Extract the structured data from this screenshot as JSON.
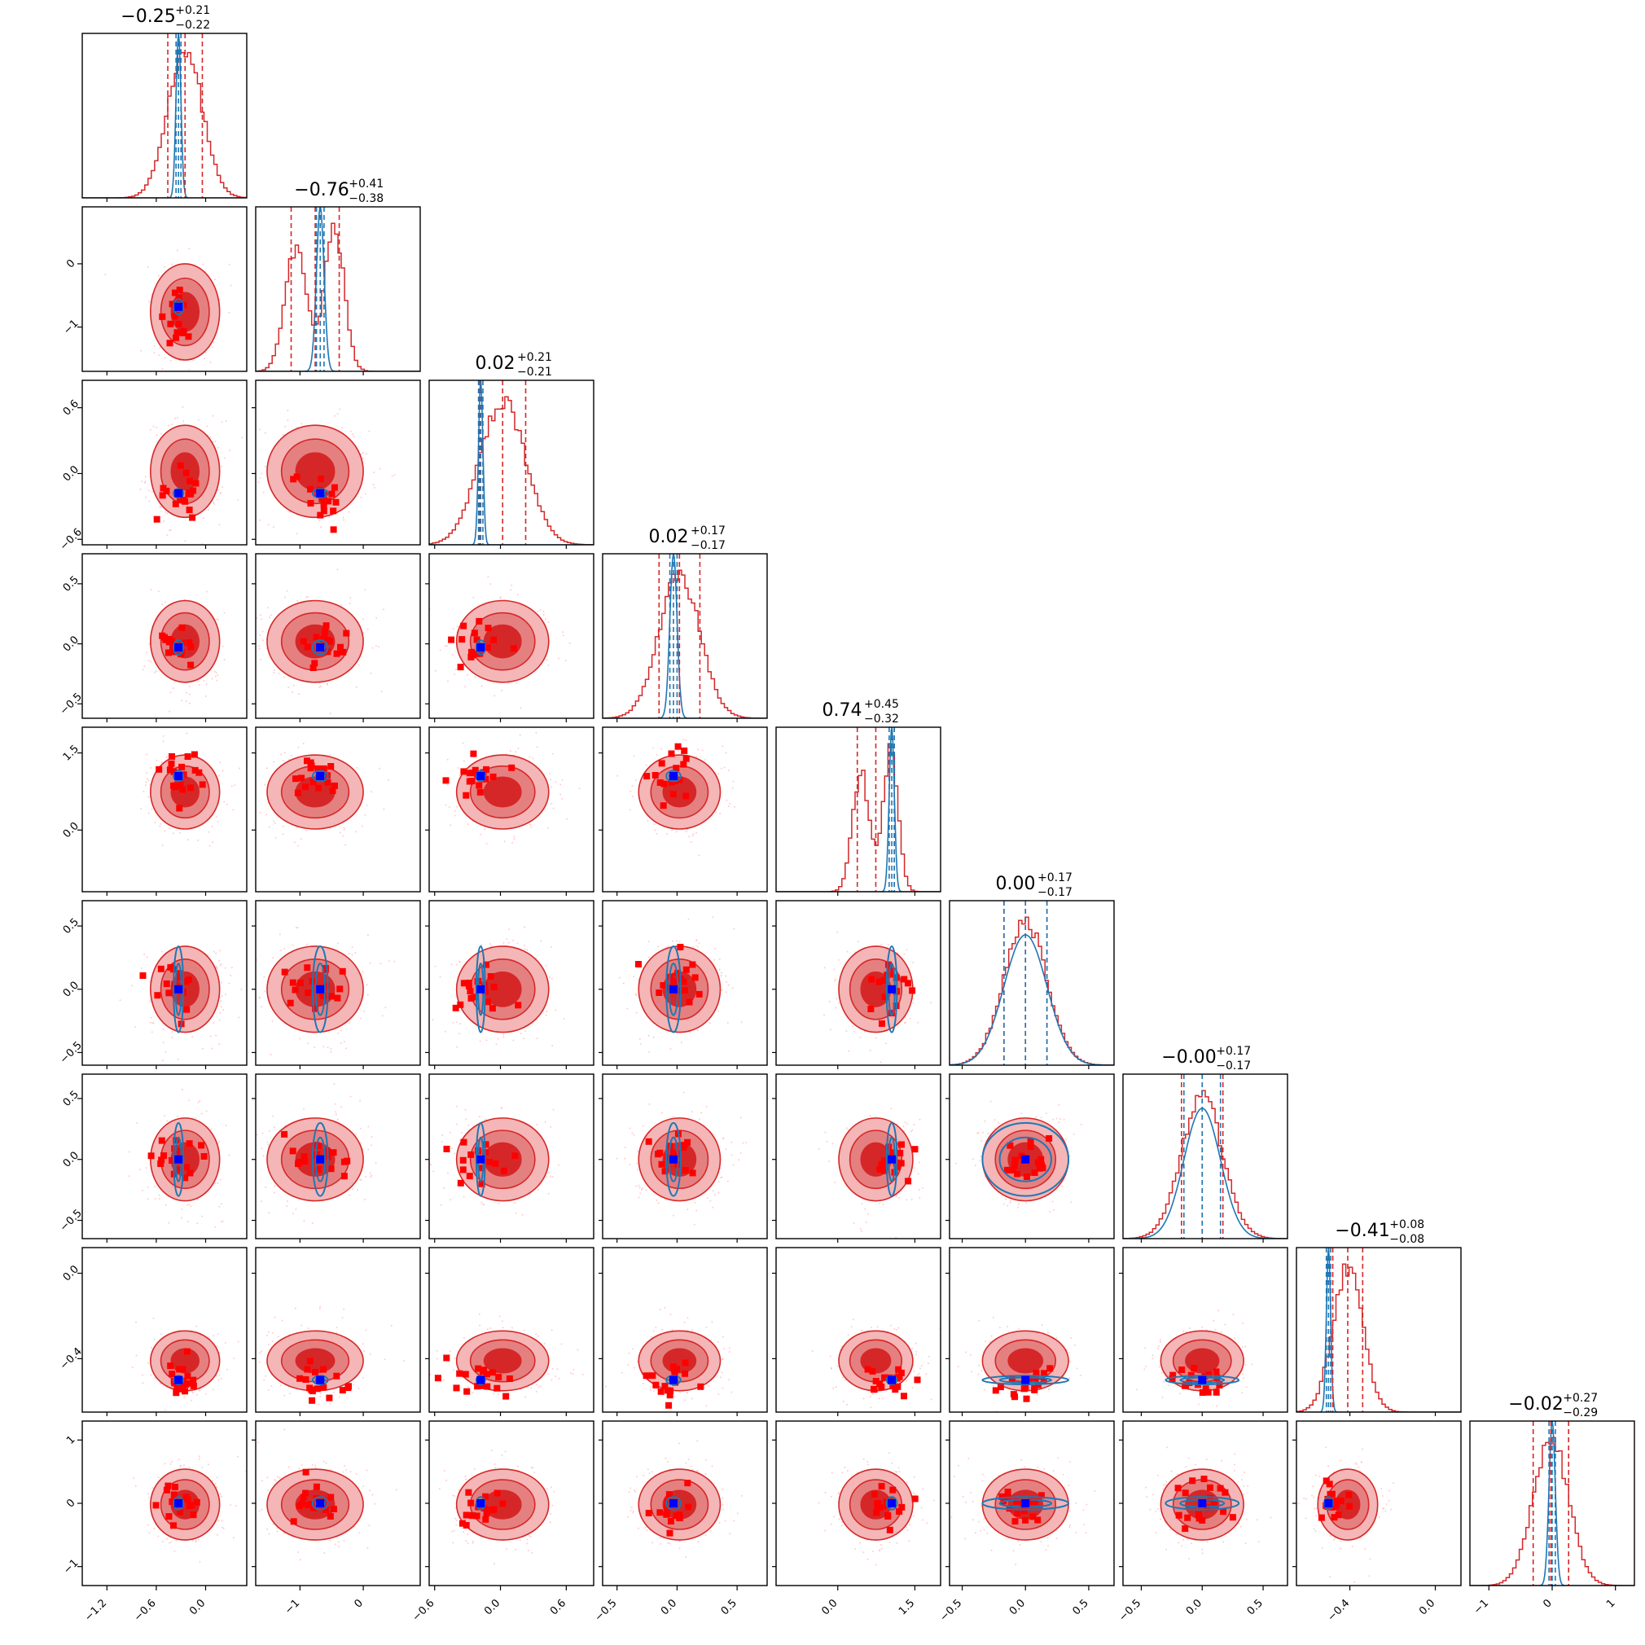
{
  "chart_data": {
    "type": "corner",
    "n_params": 9,
    "colors": {
      "reference": "#d62728",
      "fit": "#1f77b4",
      "outliers": "#ff0000",
      "truth_marker": "#0000ff"
    },
    "parameters": [
      {
        "index": 0,
        "range": [
          -1.5,
          0.5
        ],
        "ref_median": -0.25,
        "ref_plus": "+0.21",
        "ref_minus": "−0.22",
        "title_value": "−0.25",
        "ref_sigma": 0.21,
        "fit_center": -0.33,
        "fit_sigma": 0.03,
        "bimodal": false
      },
      {
        "index": 1,
        "range": [
          -1.7,
          0.9
        ],
        "ref_median": -0.76,
        "ref_plus": "+0.41",
        "ref_minus": "−0.38",
        "title_value": "−0.76",
        "ref_sigma": 0.38,
        "fit_center": -0.68,
        "fit_sigma": 0.06,
        "bimodal": true
      },
      {
        "index": 2,
        "range": [
          -0.65,
          0.85
        ],
        "ref_median": 0.02,
        "ref_plus": "+0.21",
        "ref_minus": "−0.21",
        "title_value": "0.02",
        "ref_sigma": 0.21,
        "fit_center": -0.18,
        "fit_sigma": 0.02,
        "bimodal": false
      },
      {
        "index": 3,
        "range": [
          -0.62,
          0.75
        ],
        "ref_median": 0.02,
        "ref_plus": "+0.17",
        "ref_minus": "−0.17",
        "title_value": "0.02",
        "ref_sigma": 0.17,
        "fit_center": -0.03,
        "fit_sigma": 0.03,
        "bimodal": false
      },
      {
        "index": 4,
        "range": [
          -1.2,
          2.0
        ],
        "ref_median": 0.74,
        "ref_plus": "+0.45",
        "ref_minus": "−0.32",
        "title_value": "0.74",
        "ref_sigma": 0.36,
        "fit_center": 1.05,
        "fit_sigma": 0.05,
        "bimodal": true
      },
      {
        "index": 5,
        "range": [
          -0.6,
          0.7
        ],
        "ref_median": 0.0,
        "ref_plus": "+0.17",
        "ref_minus": "−0.17",
        "title_value": "0.00",
        "ref_sigma": 0.17,
        "fit_center": 0.0,
        "fit_sigma": 0.17,
        "bimodal": false
      },
      {
        "index": 6,
        "range": [
          -0.65,
          0.7
        ],
        "ref_median": 0.0,
        "ref_plus": "+0.17",
        "ref_minus": "−0.17",
        "title_value": "−0.00",
        "ref_sigma": 0.17,
        "fit_center": 0.0,
        "fit_sigma": 0.15,
        "bimodal": false
      },
      {
        "index": 7,
        "range": [
          -0.65,
          0.12
        ],
        "ref_median": -0.41,
        "ref_plus": "+0.08",
        "ref_minus": "−0.08",
        "title_value": "−0.41",
        "ref_sigma": 0.07,
        "fit_center": -0.5,
        "fit_sigma": 0.01,
        "bimodal": false
      },
      {
        "index": 8,
        "range": [
          -1.3,
          1.3
        ],
        "ref_median": -0.02,
        "ref_plus": "+0.27",
        "ref_minus": "−0.29",
        "title_value": "−0.02",
        "ref_sigma": 0.28,
        "fit_center": 0.0,
        "fit_sigma": 0.05,
        "bimodal": false
      }
    ],
    "y_ticks": {
      "1": [
        "0",
        "−1"
      ],
      "2": [
        "0.6",
        "0.0",
        "−0.6"
      ],
      "3": [
        "0.5",
        "0.0",
        "−0.5"
      ],
      "4": [
        "1.5",
        "0.0"
      ],
      "5": [
        "0.5",
        "0.0",
        "−0.5"
      ],
      "6": [
        "0.5",
        "0.0",
        "−0.5"
      ],
      "7": [
        "0.0",
        "−0.4"
      ],
      "8": [
        "1",
        "0",
        "−1"
      ]
    },
    "x_ticks": {
      "0": [
        "−1.2",
        "−0.6",
        "0.0"
      ],
      "1": [
        "−1",
        "0"
      ],
      "2": [
        "−0.6",
        "0.0",
        "0.6"
      ],
      "3": [
        "−0.5",
        "0.0",
        "0.5"
      ],
      "4": [
        "0.0",
        "1.5"
      ],
      "5": [
        "−0.5",
        "0.0",
        "0.5"
      ],
      "6": [
        "−0.5",
        "0.0",
        "0.5"
      ],
      "7": [
        "−0.4",
        "0.0"
      ],
      "8": [
        "−1",
        "0",
        "1"
      ]
    },
    "y_tick_values": {
      "1": [
        0,
        -1
      ],
      "2": [
        0.6,
        0.0,
        -0.6
      ],
      "3": [
        0.5,
        0.0,
        -0.5
      ],
      "4": [
        1.5,
        0.0
      ],
      "5": [
        0.5,
        0.0,
        -0.5
      ],
      "6": [
        0.5,
        0.0,
        -0.5
      ],
      "7": [
        0.0,
        -0.4
      ],
      "8": [
        1,
        0,
        -1
      ]
    },
    "x_tick_values": {
      "0": [
        -1.2,
        -0.6,
        0.0
      ],
      "1": [
        -1,
        0
      ],
      "2": [
        -0.6,
        0.0,
        0.6
      ],
      "3": [
        -0.5,
        0.0,
        0.5
      ],
      "4": [
        0.0,
        1.5
      ],
      "5": [
        -0.5,
        0.0,
        0.5
      ],
      "6": [
        -0.5,
        0.0,
        0.5
      ],
      "7": [
        -0.4,
        0.0
      ],
      "8": [
        -1,
        0,
        1
      ]
    },
    "truth_point": [
      -0.33,
      -0.68,
      -0.18,
      -0.03,
      1.05,
      0.0,
      0.0,
      -0.5,
      0.0
    ]
  }
}
